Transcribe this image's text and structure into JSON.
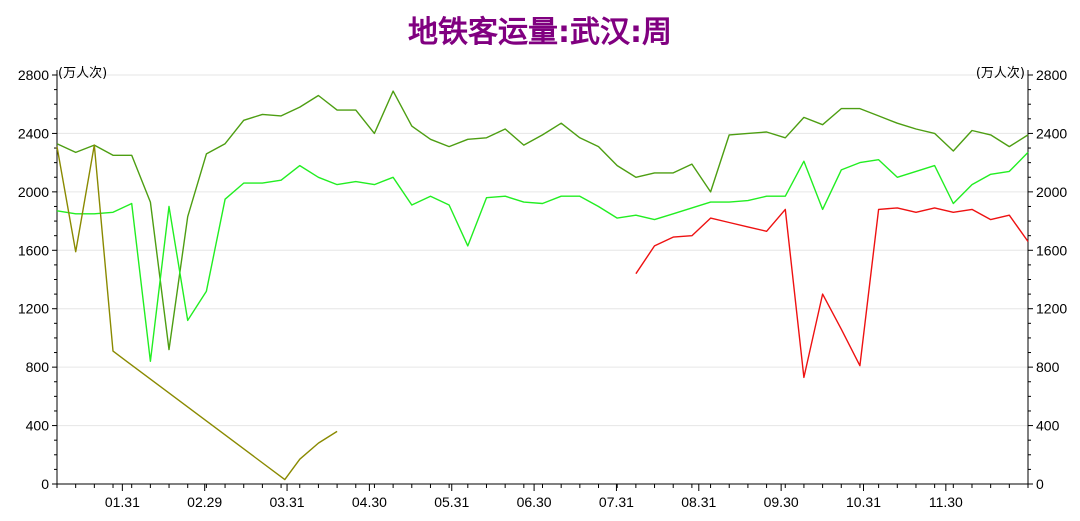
{
  "chart_data": {
    "type": "line",
    "title": "地铁客运量:武汉:周",
    "title_color": "#800080",
    "y_unit_left": "(万人次)",
    "y_unit_right": "(万人次)",
    "ylim": [
      0,
      2800
    ],
    "yticks": [
      "0",
      "400",
      "800",
      "1200",
      "1600",
      "2000",
      "2400",
      "2800"
    ],
    "xticks": [
      "01.31",
      "02.29",
      "03.31",
      "04.30",
      "05.31",
      "06.30",
      "07.31",
      "08.31",
      "09.30",
      "10.31",
      "11.30"
    ],
    "x_range": [
      0,
      52
    ],
    "grid": true,
    "series": [
      {
        "color": "#4d9e12",
        "points": [
          [
            0,
            2330
          ],
          [
            1,
            2270
          ],
          [
            2,
            2320
          ],
          [
            3,
            2250
          ],
          [
            4,
            2250
          ],
          [
            5,
            1930
          ],
          [
            6,
            920
          ],
          [
            7,
            1830
          ],
          [
            8,
            2260
          ],
          [
            9,
            2330
          ],
          [
            10,
            2490
          ],
          [
            11,
            2530
          ],
          [
            12,
            2520
          ],
          [
            13,
            2580
          ],
          [
            14,
            2660
          ],
          [
            15,
            2560
          ],
          [
            16,
            2560
          ],
          [
            17,
            2400
          ],
          [
            18,
            2690
          ],
          [
            19,
            2450
          ],
          [
            20,
            2360
          ],
          [
            21,
            2310
          ],
          [
            22,
            2360
          ],
          [
            23,
            2370
          ],
          [
            24,
            2430
          ],
          [
            25,
            2320
          ],
          [
            26,
            2390
          ],
          [
            27,
            2470
          ],
          [
            28,
            2370
          ],
          [
            29,
            2310
          ],
          [
            30,
            2180
          ],
          [
            31,
            2100
          ],
          [
            32,
            2130
          ],
          [
            33,
            2130
          ],
          [
            34,
            2190
          ],
          [
            35,
            2000
          ],
          [
            36,
            2390
          ],
          [
            37,
            2400
          ],
          [
            38,
            2410
          ],
          [
            39,
            2370
          ],
          [
            40,
            2510
          ],
          [
            41,
            2460
          ],
          [
            42,
            2570
          ],
          [
            43,
            2570
          ],
          [
            44,
            2520
          ],
          [
            45,
            2470
          ],
          [
            46,
            2430
          ],
          [
            47,
            2400
          ],
          [
            48,
            2280
          ],
          [
            49,
            2420
          ],
          [
            50,
            2390
          ],
          [
            51,
            2310
          ],
          [
            52,
            2390
          ]
        ]
      },
      {
        "color": "#22ee22",
        "points": [
          [
            0,
            1870
          ],
          [
            1,
            1850
          ],
          [
            2,
            1850
          ],
          [
            3,
            1860
          ],
          [
            4,
            1920
          ],
          [
            5,
            840
          ],
          [
            6,
            1900
          ],
          [
            7,
            1120
          ],
          [
            8,
            1320
          ],
          [
            9,
            1950
          ],
          [
            10,
            2060
          ],
          [
            11,
            2060
          ],
          [
            12,
            2080
          ],
          [
            13,
            2180
          ],
          [
            14,
            2100
          ],
          [
            15,
            2050
          ],
          [
            16,
            2070
          ],
          [
            17,
            2050
          ],
          [
            18,
            2100
          ],
          [
            19,
            1910
          ],
          [
            20,
            1970
          ],
          [
            21,
            1910
          ],
          [
            22,
            1630
          ],
          [
            23,
            1960
          ],
          [
            24,
            1970
          ],
          [
            25,
            1930
          ],
          [
            26,
            1920
          ],
          [
            27,
            1970
          ],
          [
            28,
            1970
          ],
          [
            29,
            1900
          ],
          [
            30,
            1820
          ],
          [
            31,
            1840
          ],
          [
            32,
            1810
          ],
          [
            33,
            1850
          ],
          [
            34,
            1890
          ],
          [
            35,
            1930
          ],
          [
            36,
            1930
          ],
          [
            37,
            1940
          ],
          [
            38,
            1970
          ],
          [
            39,
            1970
          ],
          [
            40,
            2210
          ],
          [
            41,
            1880
          ],
          [
            42,
            2150
          ],
          [
            43,
            2200
          ],
          [
            44,
            2220
          ],
          [
            45,
            2100
          ],
          [
            46,
            2140
          ],
          [
            47,
            2180
          ],
          [
            48,
            1920
          ],
          [
            49,
            2050
          ],
          [
            50,
            2120
          ],
          [
            51,
            2140
          ],
          [
            52,
            2270
          ]
        ]
      },
      {
        "color": "#ee1111",
        "points": [
          [
            31,
            1440
          ],
          [
            32,
            1630
          ],
          [
            33,
            1690
          ],
          [
            34,
            1700
          ],
          [
            35,
            1820
          ],
          [
            36,
            1790
          ],
          [
            37,
            1760
          ],
          [
            38,
            1730
          ],
          [
            39,
            1880
          ],
          [
            40,
            730
          ],
          [
            41,
            1300
          ],
          [
            42,
            1060
          ],
          [
            43,
            810
          ],
          [
            44,
            1880
          ],
          [
            45,
            1890
          ],
          [
            46,
            1860
          ],
          [
            47,
            1890
          ],
          [
            48,
            1860
          ],
          [
            49,
            1880
          ],
          [
            50,
            1810
          ],
          [
            51,
            1840
          ],
          [
            52,
            1660
          ]
        ]
      },
      {
        "color": "#8a8a00",
        "points": [
          [
            0,
            2310
          ],
          [
            1,
            1590
          ],
          [
            2,
            2320
          ],
          [
            3,
            910
          ],
          [
            12.2,
            30
          ],
          [
            13,
            170
          ],
          [
            14,
            280
          ],
          [
            15,
            360
          ]
        ]
      }
    ]
  }
}
